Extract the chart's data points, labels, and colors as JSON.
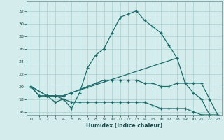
{
  "xlabel": "Humidex (Indice chaleur)",
  "background_color": "#d4edec",
  "grid_color": "#aacfce",
  "line_color": "#1a6b6b",
  "xlim": [
    -0.5,
    23.5
  ],
  "ylim": [
    15.5,
    33.5
  ],
  "xticks": [
    0,
    1,
    2,
    3,
    4,
    5,
    6,
    7,
    8,
    9,
    10,
    11,
    12,
    13,
    14,
    15,
    16,
    17,
    18,
    19,
    20,
    21,
    22,
    23
  ],
  "yticks": [
    16,
    18,
    20,
    22,
    24,
    26,
    28,
    30,
    32
  ],
  "line1_x": [
    0,
    1,
    2,
    3,
    4,
    5,
    6,
    7,
    8,
    9,
    10,
    11,
    12,
    13,
    14,
    15,
    16,
    17,
    18
  ],
  "line1_y": [
    20.0,
    18.5,
    18.5,
    17.5,
    18.0,
    16.5,
    19.0,
    23.0,
    25.0,
    26.0,
    28.5,
    31.0,
    31.5,
    32.0,
    30.5,
    29.5,
    28.5,
    26.5,
    24.5
  ],
  "line2_x": [
    0,
    2,
    3,
    4,
    5,
    18,
    19,
    20,
    21,
    22
  ],
  "line2_y": [
    20.0,
    18.5,
    18.5,
    18.5,
    19.0,
    24.5,
    20.5,
    19.0,
    18.0,
    15.5
  ],
  "line3_x": [
    0,
    2,
    3,
    4,
    5,
    6,
    7,
    8,
    9,
    10,
    11,
    12,
    13,
    14,
    15,
    16,
    17,
    18,
    19,
    20,
    21,
    22,
    23
  ],
  "line3_y": [
    20.0,
    18.5,
    18.5,
    18.5,
    19.0,
    19.5,
    20.0,
    20.5,
    21.0,
    21.0,
    21.0,
    21.0,
    21.0,
    20.5,
    20.5,
    20.0,
    20.0,
    20.5,
    20.5,
    20.5,
    20.5,
    18.0,
    15.5
  ],
  "line4_x": [
    0,
    1,
    2,
    3,
    4,
    5,
    6,
    7,
    8,
    9,
    10,
    11,
    12,
    13,
    14,
    15,
    16,
    17,
    18,
    19,
    20,
    21,
    22,
    23
  ],
  "line4_y": [
    20.0,
    18.5,
    18.5,
    18.5,
    18.0,
    17.5,
    17.5,
    17.5,
    17.5,
    17.5,
    17.5,
    17.5,
    17.5,
    17.5,
    17.5,
    17.0,
    16.5,
    16.5,
    16.5,
    16.5,
    16.0,
    15.5,
    15.5,
    15.5
  ]
}
